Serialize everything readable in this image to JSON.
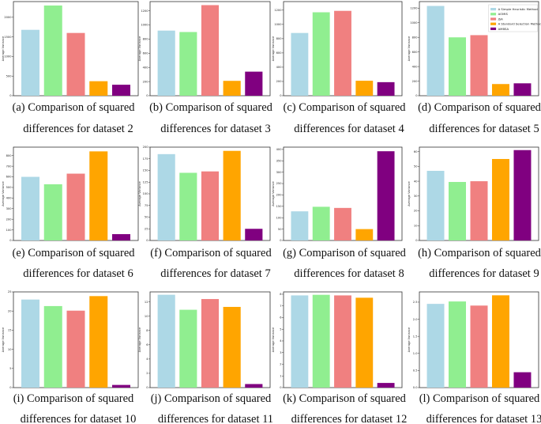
{
  "colors": {
    "simple_heuristic": "#add8e6",
    "aomis": "#90ee90",
    "jsa": "#f08080",
    "standard_selection": "#ffa500",
    "ambsa": "#800080"
  },
  "legend": {
    "entries": [
      "A Simple Heuristic Method",
      "AOMIS",
      "JSA",
      "A Standard Selection Method",
      "AMBSA"
    ]
  },
  "chart_data": [
    {
      "type": "bar",
      "ylabel": "Average Variance",
      "categories": [
        "A Simple Heuristic Method",
        "AOMIS",
        "JSA",
        "A Standard Selection Method",
        "AMBSA"
      ],
      "values": [
        1680,
        2300,
        1600,
        370,
        280
      ],
      "ylim": [
        0,
        2400
      ],
      "yticks": [
        0,
        500,
        1000,
        1500,
        2000
      ],
      "caption": [
        "(a) Comparison of squared",
        "differences for dataset 2"
      ]
    },
    {
      "type": "bar",
      "ylabel": "Average Variance",
      "categories": [
        "A Simple Heuristic Method",
        "AOMIS",
        "JSA",
        "A Standard Selection Method",
        "AMBSA"
      ],
      "values": [
        920,
        900,
        1280,
        210,
        340
      ],
      "ylim": [
        0,
        1330
      ],
      "yticks": [
        0,
        200,
        400,
        600,
        800,
        1000,
        1200
      ],
      "caption": [
        "(b) Comparison of squared",
        "differences for dataset 3"
      ]
    },
    {
      "type": "bar",
      "ylabel": "Average Variance",
      "categories": [
        "A Simple Heuristic Method",
        "AOMIS",
        "JSA",
        "A Standard Selection Method",
        "AMBSA"
      ],
      "values": [
        880,
        1170,
        1190,
        210,
        190
      ],
      "ylim": [
        0,
        1320
      ],
      "yticks": [
        0,
        200,
        400,
        600,
        800,
        1000,
        1200
      ],
      "caption": [
        "(c) Comparison of squared",
        "differences for dataset 4"
      ]
    },
    {
      "type": "bar",
      "ylabel": "Average Variance",
      "categories": [
        "A Simple Heuristic Method",
        "AOMIS",
        "JSA",
        "A Standard Selection Method",
        "AMBSA"
      ],
      "values": [
        1230,
        800,
        830,
        160,
        170
      ],
      "ylim": [
        0,
        1290
      ],
      "yticks": [
        0,
        200,
        400,
        600,
        800,
        1000,
        1200
      ],
      "legend": "top-right",
      "caption": [
        "(d) Comparison of squared",
        "differences for dataset 5"
      ]
    },
    {
      "type": "bar",
      "ylabel": "Average Variance",
      "categories": [
        "A Simple Heuristic Method",
        "AOMIS",
        "JSA",
        "A Standard Selection Method",
        "AMBSA"
      ],
      "values": [
        600,
        530,
        630,
        840,
        60
      ],
      "ylim": [
        0,
        880
      ],
      "yticks": [
        0,
        100,
        200,
        300,
        400,
        500,
        600,
        700,
        800
      ],
      "caption": [
        "(e) Comparison of squared",
        "differences for dataset 6"
      ]
    },
    {
      "type": "bar",
      "ylabel": "Average Variance",
      "categories": [
        "A Simple Heuristic Method",
        "AOMIS",
        "JSA",
        "A Standard Selection Method",
        "AMBSA"
      ],
      "values": [
        185,
        145,
        148,
        192,
        25
      ],
      "ylim": [
        0,
        200
      ],
      "yticks": [
        0,
        25,
        50,
        75,
        100,
        125,
        150,
        175,
        200
      ],
      "caption": [
        "(f) Comparison of squared",
        "differences for dataset 7"
      ]
    },
    {
      "type": "bar",
      "ylabel": "Average Variance",
      "categories": [
        "A Simple Heuristic Method",
        "AOMIS",
        "JSA",
        "A Standard Selection Method",
        "AMBSA"
      ],
      "values": [
        128,
        148,
        143,
        50,
        392
      ],
      "ylim": [
        0,
        410
      ],
      "yticks": [
        0,
        50,
        100,
        150,
        200,
        250,
        300,
        350,
        400
      ],
      "caption": [
        "(g) Comparison of squared",
        "differences for dataset 8"
      ]
    },
    {
      "type": "bar",
      "ylabel": "Average Variance",
      "categories": [
        "A Simple Heuristic Method",
        "AOMIS",
        "JSA",
        "A Standard Selection Method",
        "AMBSA"
      ],
      "values": [
        47,
        39.5,
        40,
        55,
        61
      ],
      "ylim": [
        0,
        63
      ],
      "yticks": [
        0,
        10,
        20,
        30,
        40,
        50,
        60
      ],
      "caption": [
        "(h) Comparison of squared",
        "differences for dataset 9"
      ]
    },
    {
      "type": "bar",
      "ylabel": "Average Variance",
      "categories": [
        "A Simple Heuristic Method",
        "AOMIS",
        "JSA",
        "A Standard Selection Method",
        "AMBSA"
      ],
      "values": [
        23,
        21.3,
        20.1,
        23.9,
        0.7
      ],
      "ylim": [
        0,
        25
      ],
      "yticks": [
        0,
        5,
        10,
        15,
        20,
        25
      ],
      "caption": [
        "(i) Comparison of squared",
        "differences for dataset 10"
      ]
    },
    {
      "type": "bar",
      "ylabel": "Average Variance",
      "categories": [
        "A Simple Heuristic Method",
        "AOMIS",
        "JSA",
        "A Standard Selection Method",
        "AMBSA"
      ],
      "values": [
        13,
        10.9,
        12.4,
        11.3,
        0.5
      ],
      "ylim": [
        0,
        13.4
      ],
      "yticks": [
        0,
        2,
        4,
        6,
        8,
        10,
        12
      ],
      "caption": [
        "(j) Comparison of squared",
        "differences for dataset 11"
      ]
    },
    {
      "type": "bar",
      "ylabel": "Average Variance",
      "categories": [
        "A Simple Heuristic Method",
        "AOMIS",
        "JSA",
        "A Standard Selection Method",
        "AMBSA"
      ],
      "values": [
        7.9,
        7.95,
        7.9,
        7.7,
        0.4
      ],
      "ylim": [
        0,
        8.2
      ],
      "yticks": [
        0,
        1,
        2,
        3,
        4,
        5,
        6,
        7,
        8
      ],
      "caption": [
        "(k) Comparison of squared",
        "differences for dataset 12"
      ]
    },
    {
      "type": "bar",
      "ylabel": "Average Variance",
      "categories": [
        "A Simple Heuristic Method",
        "AOMIS",
        "JSA",
        "A Standard Selection Method",
        "AMBSA"
      ],
      "values": [
        2.45,
        2.52,
        2.4,
        2.7,
        0.45
      ],
      "ylim": [
        0,
        2.8
      ],
      "yticks": [
        0,
        0.5,
        1.0,
        1.5,
        2.0,
        2.5
      ],
      "caption": [
        "(l) Comparison of squared",
        "differences for dataset 13"
      ]
    }
  ]
}
